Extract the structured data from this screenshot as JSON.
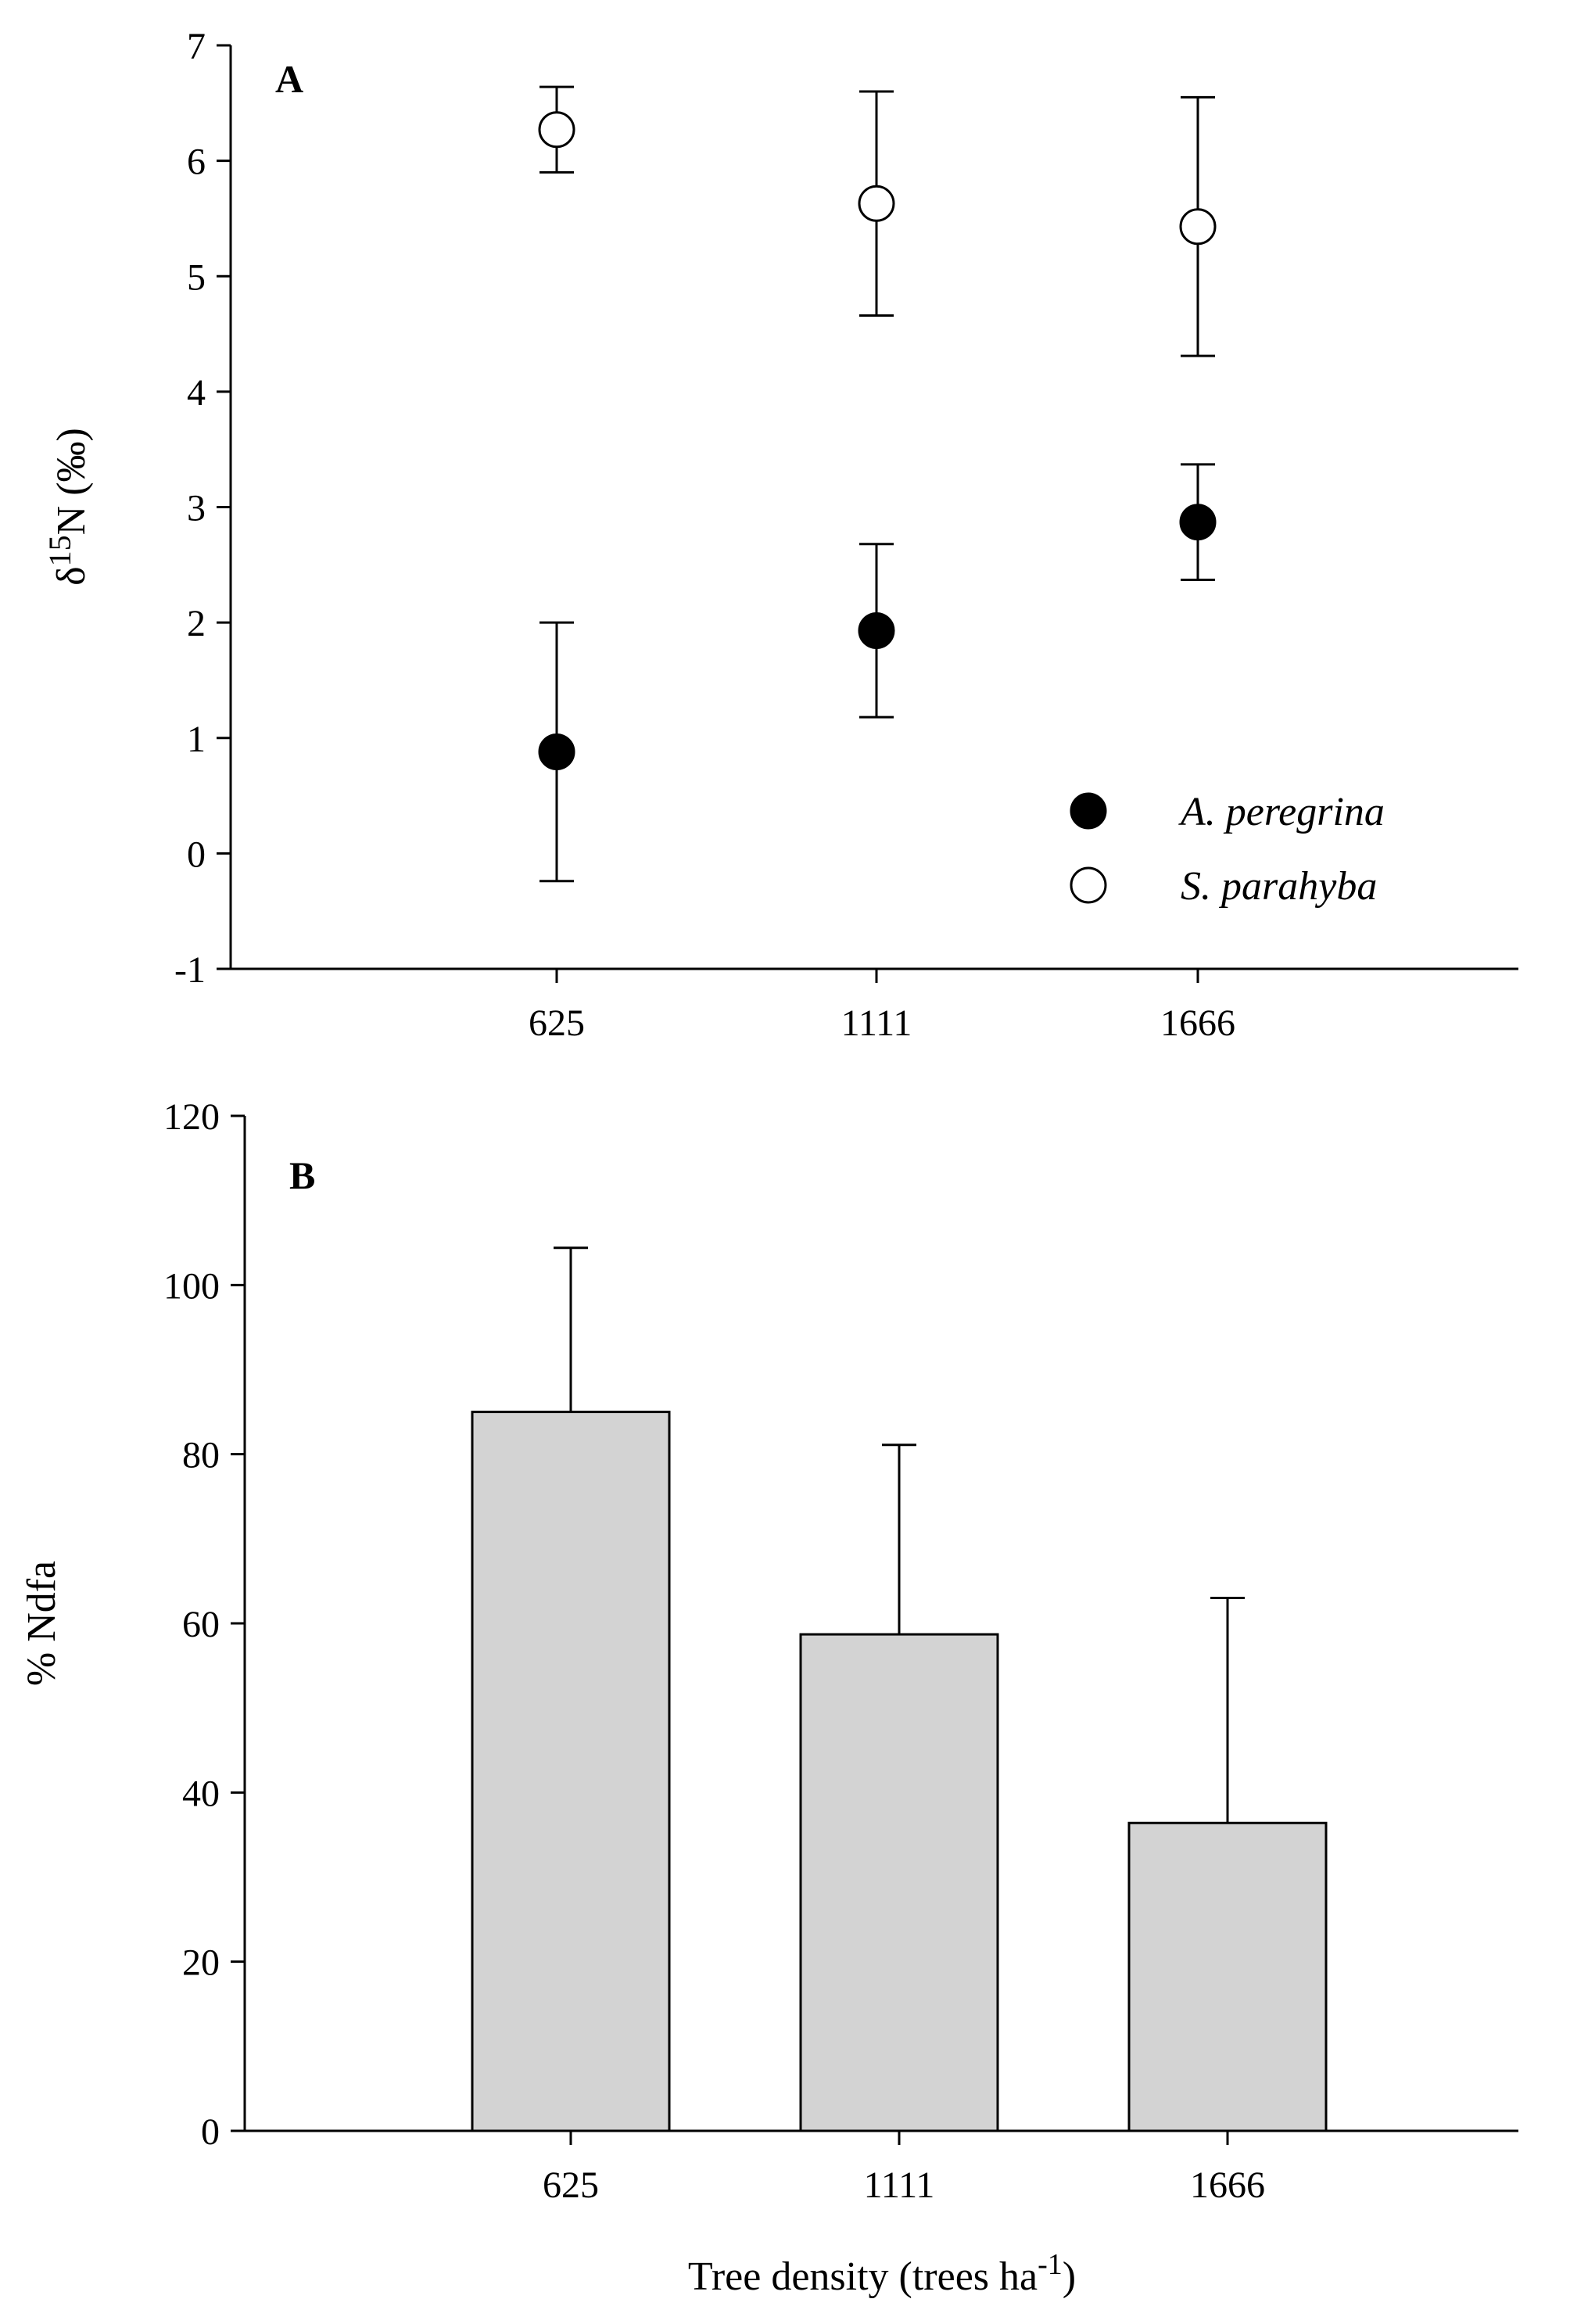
{
  "chart_data": [
    {
      "panel": "A",
      "type": "scatter",
      "ylabel_prefix": "δ",
      "ylabel_sup": "15",
      "ylabel_suffix": "N (‰)",
      "xlabel": "",
      "categories": [
        "625",
        "1111",
        "1666"
      ],
      "ylim": [
        -1,
        7
      ],
      "yticks": [
        -1,
        0,
        1,
        2,
        3,
        4,
        5,
        6,
        7
      ],
      "series": [
        {
          "name": "A. peregrina",
          "marker": "filled-circle",
          "values": [
            0.88,
            1.93,
            2.87
          ],
          "error": [
            1.12,
            0.75,
            0.5
          ]
        },
        {
          "name": "S. parahyba",
          "marker": "open-circle",
          "values": [
            6.27,
            5.63,
            5.43
          ],
          "error": [
            0.37,
            0.97,
            1.12
          ]
        }
      ]
    },
    {
      "panel": "B",
      "type": "bar",
      "ylabel": "% Ndfa",
      "xlabel_main": "Tree density (trees ha",
      "xlabel_sup": "-1",
      "xlabel_tail": ")",
      "categories": [
        "625",
        "1111",
        "1666"
      ],
      "ylim": [
        0,
        120
      ],
      "yticks": [
        0,
        20,
        40,
        60,
        80,
        100,
        120
      ],
      "values": [
        85,
        58.7,
        36.4
      ],
      "error": [
        19.4,
        22.4,
        26.6
      ],
      "bar_color": "#d3d3d3"
    }
  ]
}
